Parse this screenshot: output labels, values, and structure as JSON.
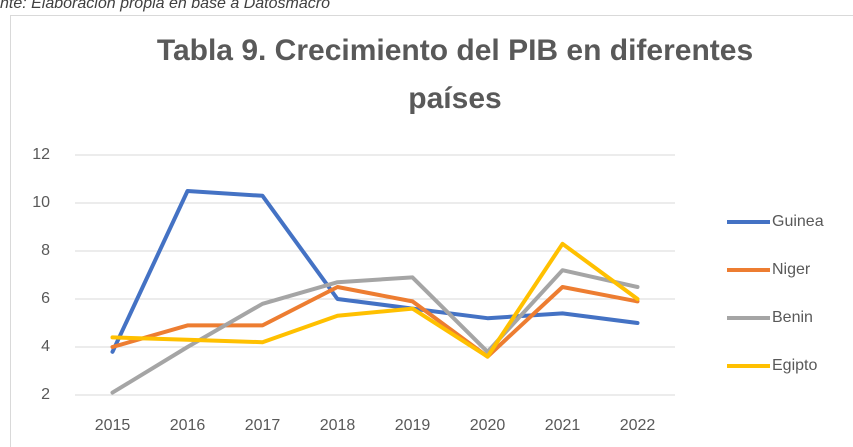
{
  "caption": "nte: Elaboración propia en base a Datosmacro",
  "chart_data": {
    "type": "line",
    "title": [
      "Tabla 9. Crecimiento del PIB en diferentes",
      "países"
    ],
    "categories": [
      "2015",
      "2016",
      "2017",
      "2018",
      "2019",
      "2020",
      "2021",
      "2022"
    ],
    "series": [
      {
        "name": "Guinea",
        "color": "#4472c4",
        "values": [
          3.8,
          10.5,
          10.3,
          6.0,
          5.6,
          5.2,
          5.4,
          5.0
        ]
      },
      {
        "name": "Niger",
        "color": "#ed7d31",
        "values": [
          4.0,
          4.9,
          4.9,
          6.5,
          5.9,
          3.6,
          6.5,
          5.9
        ]
      },
      {
        "name": "Benin",
        "color": "#a5a5a5",
        "values": [
          2.1,
          4.0,
          5.8,
          6.7,
          6.9,
          3.8,
          7.2,
          6.5
        ]
      },
      {
        "name": "Egipto",
        "color": "#ffc000",
        "values": [
          4.4,
          4.3,
          4.2,
          5.3,
          5.6,
          3.6,
          8.3,
          6.0
        ]
      }
    ],
    "ylim": [
      2,
      12
    ],
    "yticks": [
      2,
      4,
      6,
      8,
      10,
      12
    ],
    "grid": true,
    "legend": "right"
  }
}
